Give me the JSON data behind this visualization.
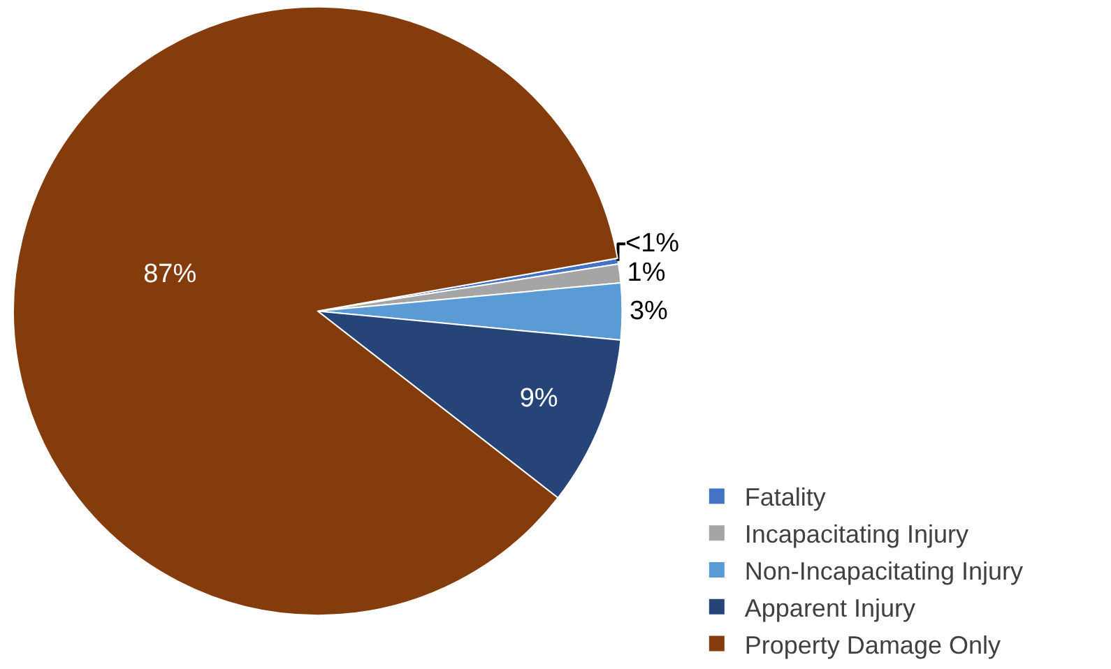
{
  "chart_data": {
    "type": "pie",
    "categories": [
      "Fatality",
      "Incapacitating Injury",
      "Non-Incapacitating Injury",
      "Apparent Injury",
      "Property Damage Only"
    ],
    "values": [
      0.3,
      1,
      3,
      9,
      86.7
    ],
    "value_labels": [
      "<1%",
      "1%",
      "3%",
      "9%",
      "87%"
    ],
    "colors": [
      "#4472c4",
      "#a5a5a5",
      "#5b9bd5",
      "#264478",
      "#843c0c"
    ],
    "legend": "bottom right"
  }
}
